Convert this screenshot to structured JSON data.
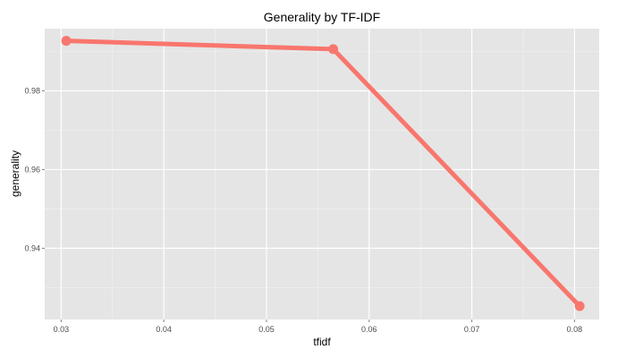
{
  "chart_data": {
    "type": "line",
    "title": "Generality by TF-IDF",
    "xlabel": "tfidf",
    "ylabel": "generality",
    "x_ticks": [
      0.03,
      0.04,
      0.05,
      0.06,
      0.07,
      0.08
    ],
    "x_tick_labels": [
      "0.03",
      "0.04",
      "0.05",
      "0.06",
      "0.07",
      "0.08"
    ],
    "y_ticks": [
      0.94,
      0.96,
      0.98
    ],
    "y_tick_labels": [
      "0.94",
      "0.96",
      "0.98"
    ],
    "xlim": [
      0.0284,
      0.0824
    ],
    "ylim": [
      0.9219,
      0.9958
    ],
    "grid": true,
    "series": [
      {
        "color": "#F8766D",
        "points": [
          {
            "x": 0.0305,
            "y": 0.9927
          },
          {
            "x": 0.0565,
            "y": 0.9906
          },
          {
            "x": 0.0805,
            "y": 0.9253
          }
        ]
      }
    ]
  }
}
